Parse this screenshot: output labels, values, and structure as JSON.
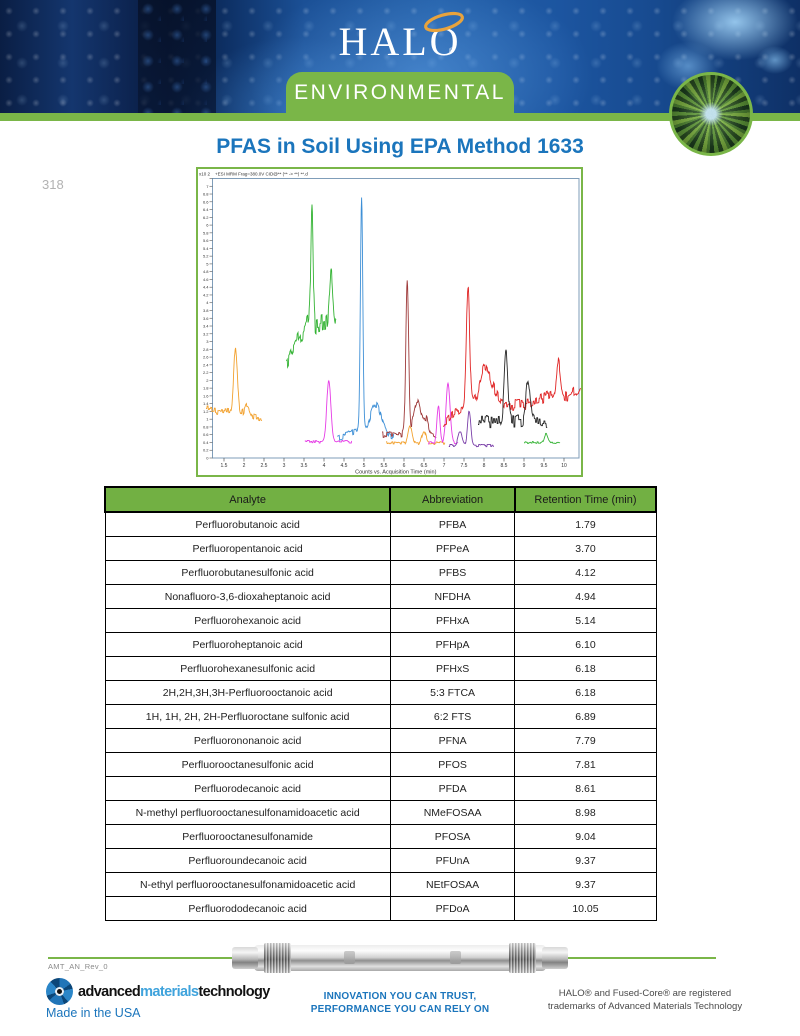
{
  "header": {
    "brand": "HALO",
    "brand_registered": "®",
    "banner": "ENVIRONMENTAL",
    "title": "PFAS in Soil Using EPA Method 1633"
  },
  "page": {
    "number": "318"
  },
  "chart_data": {
    "type": "line",
    "title": "+ESI MRM Frag=380.0V CID@** (** -> **) **.d",
    "exponent_label": "x10 2",
    "xlabel": "Counts vs. Acquisition Time (min)",
    "ylabel": "Counts",
    "xlim": [
      1.2,
      10.375
    ],
    "ylim": [
      0,
      7.2
    ],
    "x_ticks": {
      "start": 1.5,
      "end": 10,
      "step": 0.5
    },
    "y_ticks": {
      "start": 0,
      "end": 7.2,
      "step": 0.2
    },
    "grid": false,
    "legend": "none",
    "series": [
      {
        "name": "trace-01-PFBA",
        "color": "#f2a12e",
        "base": [
          [
            1.05,
            1.25
          ],
          [
            1.5,
            1.2
          ],
          [
            2.45,
            1.05
          ]
        ],
        "noise": 0.1,
        "peaks": [
          {
            "t": 1.79,
            "h": 1.7,
            "w": 0.045
          },
          {
            "t": 2.08,
            "h": 0.25,
            "w": 0.06
          }
        ]
      },
      {
        "name": "trace-02-PFPeA",
        "color": "#33b333",
        "base": [
          [
            3.06,
            2.4
          ],
          [
            3.55,
            3.4
          ],
          [
            3.62,
            3.55
          ],
          [
            3.78,
            3.4
          ],
          [
            4.05,
            3.5
          ],
          [
            4.3,
            3.45
          ]
        ],
        "noise": 0.26,
        "peaks": [
          {
            "t": 3.7,
            "h": 3.1,
            "w": 0.028
          },
          {
            "t": 4.18,
            "h": 1.35,
            "w": 0.04
          }
        ]
      },
      {
        "name": "trace-03-PFBS",
        "color": "#e63ce6",
        "base": [
          [
            3.52,
            0.42
          ],
          [
            4.7,
            0.42
          ]
        ],
        "noise": 0.035,
        "peaks": [
          {
            "t": 4.12,
            "h": 1.6,
            "w": 0.05
          }
        ]
      },
      {
        "name": "trace-04-NFDHA-PFHxA",
        "color": "#3d8fd6",
        "base": [
          [
            4.33,
            0.5
          ],
          [
            4.8,
            0.72
          ],
          [
            5.75,
            0.55
          ]
        ],
        "noise": 0.09,
        "peaks": [
          {
            "t": 4.94,
            "h": 5.95,
            "w": 0.03
          },
          {
            "t": 5.3,
            "h": 0.75,
            "w": 0.13
          }
        ]
      },
      {
        "name": "trace-05-PFHpA",
        "color": "#9e3a3a",
        "base": [
          [
            5.45,
            0.6
          ],
          [
            6.8,
            0.6
          ]
        ],
        "noise": 0.09,
        "peaks": [
          {
            "t": 6.08,
            "h": 3.95,
            "w": 0.035
          },
          {
            "t": 6.33,
            "h": 0.85,
            "w": 0.09
          },
          {
            "t": 6.55,
            "h": 0.4,
            "w": 0.06
          }
        ]
      },
      {
        "name": "trace-06",
        "color": "#f2a12e",
        "base": [
          [
            5.55,
            0.38
          ],
          [
            7.02,
            0.38
          ]
        ],
        "noise": 0.04,
        "peaks": [
          {
            "t": 6.15,
            "h": 0.45,
            "w": 0.05
          },
          {
            "t": 6.5,
            "h": 0.32,
            "w": 0.05
          }
        ]
      },
      {
        "name": "trace-07",
        "color": "#e63ce6",
        "base": [
          [
            6.6,
            0.4
          ],
          [
            7.35,
            0.4
          ]
        ],
        "noise": 0.04,
        "peaks": [
          {
            "t": 6.86,
            "h": 0.95,
            "w": 0.035
          },
          {
            "t": 7.1,
            "h": 1.5,
            "w": 0.05
          }
        ]
      },
      {
        "name": "trace-08-PFOS",
        "color": "#7a3fa8",
        "base": [
          [
            7.12,
            0.32
          ],
          [
            8.25,
            0.32
          ]
        ],
        "noise": 0.03,
        "peaks": [
          {
            "t": 7.4,
            "h": 0.35,
            "w": 0.05
          },
          {
            "t": 7.63,
            "h": 0.9,
            "w": 0.04
          }
        ]
      },
      {
        "name": "trace-09-PFNA",
        "color": "#e02424",
        "base": [
          [
            6.98,
            0.9
          ],
          [
            7.3,
            1.15
          ],
          [
            7.85,
            1.55
          ],
          [
            8.15,
            1.95
          ],
          [
            8.5,
            1.35
          ],
          [
            9.2,
            1.4
          ],
          [
            9.7,
            1.65
          ],
          [
            10.1,
            1.55
          ],
          [
            10.42,
            1.85
          ]
        ],
        "noise": 0.14,
        "peaks": [
          {
            "t": 7.6,
            "h": 3.05,
            "w": 0.04
          },
          {
            "t": 8.0,
            "h": 0.55,
            "w": 0.09
          },
          {
            "t": 9.86,
            "h": 0.85,
            "w": 0.05
          }
        ]
      },
      {
        "name": "trace-10-PFDA-PFOSA",
        "color": "#262626",
        "base": [
          [
            7.85,
            0.95
          ],
          [
            8.8,
            0.95
          ],
          [
            9.58,
            0.95
          ]
        ],
        "noise": 0.17,
        "peaks": [
          {
            "t": 8.55,
            "h": 1.75,
            "w": 0.045
          },
          {
            "t": 9.1,
            "h": 1.05,
            "w": 0.05
          }
        ]
      },
      {
        "name": "trace-11",
        "color": "#33b333",
        "base": [
          [
            9.0,
            0.4
          ],
          [
            9.9,
            0.4
          ]
        ],
        "noise": 0.025,
        "peaks": [
          {
            "t": 9.55,
            "h": 0.22,
            "w": 0.04
          }
        ]
      }
    ]
  },
  "table": {
    "columns": [
      "Analyte",
      "Abbreviation",
      "Retention Time (min)"
    ],
    "rows": [
      [
        "Perfluorobutanoic acid",
        "PFBA",
        "1.79"
      ],
      [
        "Perfluoropentanoic acid",
        "PFPeA",
        "3.70"
      ],
      [
        "Perfluorobutanesulfonic acid",
        "PFBS",
        "4.12"
      ],
      [
        "Nonafluoro-3,6-dioxaheptanoic acid",
        "NFDHA",
        "4.94"
      ],
      [
        "Perfluorohexanoic acid",
        "PFHxA",
        "5.14"
      ],
      [
        "Perfluoroheptanoic acid",
        "PFHpA",
        "6.10"
      ],
      [
        "Perfluorohexanesulfonic acid",
        "PFHxS",
        "6.18"
      ],
      [
        "2H,2H,3H,3H-Perfluorooctanoic acid",
        "5:3 FTCA",
        "6.18"
      ],
      [
        "1H, 1H, 2H, 2H-Perfluoroctane sulfonic acid",
        "6:2 FTS",
        "6.89"
      ],
      [
        "Perfluorononanoic acid",
        "PFNA",
        "7.79"
      ],
      [
        "Perfluorooctanesulfonic acid",
        "PFOS",
        "7.81"
      ],
      [
        "Perfluorodecanoic acid",
        "PFDA",
        "8.61"
      ],
      [
        "N-methyl perfluorooctanesulfonamidoacetic acid",
        "NMeFOSAA",
        "8.98"
      ],
      [
        "Perfluorooctanesulfonamide",
        "PFOSA",
        "9.04"
      ],
      [
        "Perfluoroundecanoic acid",
        "PFUnA",
        "9.37"
      ],
      [
        "N-ethyl perfluorooctanesulfonamidoacetic acid",
        "NEtFOSAA",
        "9.37"
      ],
      [
        "Perfluorododecanoic acid",
        "PFDoA",
        "10.05"
      ]
    ]
  },
  "footer": {
    "revision": "AMT_AN_Rev_0",
    "logo": {
      "part1": "advanced",
      "part2": "materials",
      "part3": "technology"
    },
    "made_in": "Made in the USA",
    "tagline_line1": "INNOVATION YOU CAN TRUST,",
    "tagline_line2": "PERFORMANCE YOU CAN RELY ON",
    "trademark_line1": "HALO® and Fused-Core® are registered",
    "trademark_line2": "trademarks of Advanced Materials Technology"
  },
  "colors": {
    "accent_green": "#7ab648",
    "table_header_green": "#72b043",
    "brand_blue": "#1b75bc",
    "halo_ring_orange": "#e8a33d"
  }
}
